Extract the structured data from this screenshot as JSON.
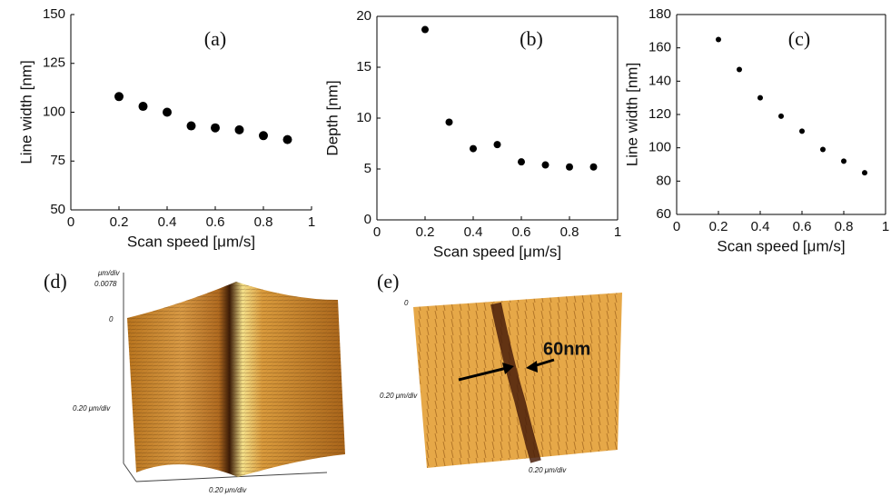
{
  "chart_data": [
    {
      "type": "scatter",
      "annotation": "(a)",
      "xlabel": "Scan speed [μm/s]",
      "ylabel": "Line width [nm]",
      "x": [
        0.2,
        0.3,
        0.4,
        0.5,
        0.6,
        0.7,
        0.8,
        0.9
      ],
      "series": [
        {
          "color": "#000000",
          "values": [
            108,
            103,
            100,
            93,
            92,
            91,
            88,
            86
          ]
        }
      ],
      "xlim": [
        0,
        1
      ],
      "xticks": [
        0,
        0.2,
        0.4,
        0.6,
        0.8,
        1
      ],
      "ylim": [
        50,
        150
      ],
      "yticks": [
        50,
        75,
        100,
        125,
        150
      ]
    },
    {
      "type": "scatter",
      "annotation": "(b)",
      "xlabel": "Scan speed [μm/s]",
      "ylabel": "Depth [nm]",
      "x": [
        0.2,
        0.3,
        0.4,
        0.5,
        0.6,
        0.7,
        0.8,
        0.9
      ],
      "series": [
        {
          "color": "#000000",
          "values": [
            18.7,
            9.6,
            7.0,
            7.4,
            5.7,
            5.4,
            5.2,
            5.2
          ]
        }
      ],
      "xlim": [
        0,
        1
      ],
      "xticks": [
        0,
        0.2,
        0.4,
        0.6,
        0.8,
        1
      ],
      "ylim": [
        0,
        20
      ],
      "yticks": [
        0,
        5,
        10,
        15,
        20
      ]
    },
    {
      "type": "scatter",
      "annotation": "(c)",
      "xlabel": "Scan speed [μm/s]",
      "ylabel": "Line width [nm]",
      "x": [
        0.2,
        0.3,
        0.4,
        0.5,
        0.6,
        0.7,
        0.8,
        0.9
      ],
      "series": [
        {
          "color": "#000000",
          "values": [
            165,
            147,
            130,
            119,
            110,
            99,
            92,
            85
          ]
        }
      ],
      "xlim": [
        0,
        1
      ],
      "xticks": [
        0,
        0.2,
        0.4,
        0.6,
        0.8,
        1
      ],
      "ylim": [
        60,
        180
      ],
      "yticks": [
        60,
        80,
        100,
        120,
        140,
        160,
        180
      ]
    }
  ],
  "image_panels": [
    {
      "label": "(d)",
      "z_unit": "μm/div",
      "z_max": "0.0078",
      "z_min": "0",
      "y_scale": "0.20 μm/div",
      "x_scale": "0.20 μm/div"
    },
    {
      "label": "(e)",
      "z_min": "0",
      "y_scale": "0.20 μm/div",
      "x_scale": "0.20 μm/div",
      "annotation": "60nm"
    }
  ]
}
